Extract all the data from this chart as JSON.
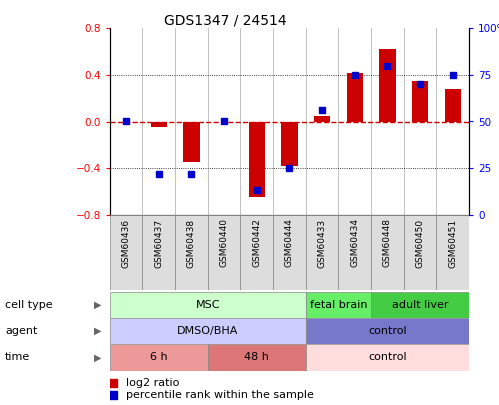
{
  "title": "GDS1347 / 24514",
  "samples": [
    "GSM60436",
    "GSM60437",
    "GSM60438",
    "GSM60440",
    "GSM60442",
    "GSM60444",
    "GSM60433",
    "GSM60434",
    "GSM60448",
    "GSM60450",
    "GSM60451"
  ],
  "log2_ratio": [
    0.0,
    -0.05,
    -0.35,
    0.0,
    -0.65,
    -0.38,
    0.05,
    0.42,
    0.62,
    0.35,
    0.28
  ],
  "percentile_rank": [
    50,
    22,
    22,
    50,
    13,
    25,
    56,
    75,
    80,
    70,
    75
  ],
  "ylim_left": [
    -0.8,
    0.8
  ],
  "ylim_right": [
    0,
    100
  ],
  "yticks_left": [
    -0.8,
    -0.4,
    0.0,
    0.4,
    0.8
  ],
  "yticks_right": [
    0,
    25,
    50,
    75,
    100
  ],
  "ytick_labels_right": [
    "0",
    "25",
    "50",
    "75",
    "100%"
  ],
  "bar_color": "#cc0000",
  "dot_color": "#0000cc",
  "zero_line_color": "#cc0000",
  "cell_type_groups": [
    {
      "label": "MSC",
      "start": 0,
      "end": 5,
      "color": "#ccffcc"
    },
    {
      "label": "fetal brain",
      "start": 6,
      "end": 7,
      "color": "#66ee66"
    },
    {
      "label": "adult liver",
      "start": 8,
      "end": 10,
      "color": "#44cc44"
    }
  ],
  "agent_groups": [
    {
      "label": "DMSO/BHA",
      "start": 0,
      "end": 5,
      "color": "#ccccff"
    },
    {
      "label": "control",
      "start": 6,
      "end": 10,
      "color": "#7777cc"
    }
  ],
  "time_groups": [
    {
      "label": "6 h",
      "start": 0,
      "end": 2,
      "color": "#ee9999"
    },
    {
      "label": "48 h",
      "start": 3,
      "end": 5,
      "color": "#dd7777"
    },
    {
      "label": "control",
      "start": 6,
      "end": 10,
      "color": "#ffdddd"
    }
  ],
  "row_labels": [
    "cell type",
    "agent",
    "time"
  ],
  "legend_red": "log2 ratio",
  "legend_blue": "percentile rank within the sample"
}
